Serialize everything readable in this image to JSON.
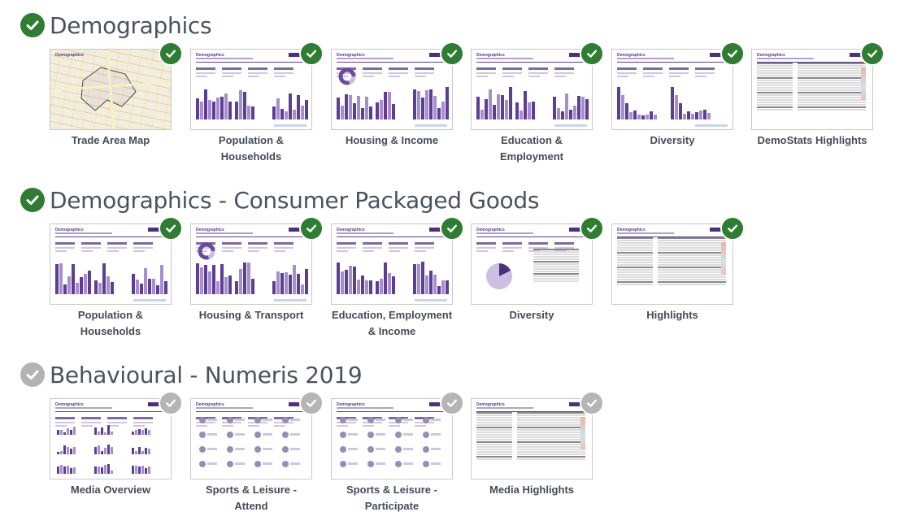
{
  "sections": [
    {
      "title": "Demographics",
      "checked": true,
      "cards": [
        {
          "label": "Trade Area Map",
          "checked": true,
          "thumb_type": "map"
        },
        {
          "label": "Population & Households",
          "checked": true,
          "thumb_type": "bars"
        },
        {
          "label": "Housing & Income",
          "checked": true,
          "thumb_type": "bars-donut"
        },
        {
          "label": "Education & Employment",
          "checked": true,
          "thumb_type": "bars"
        },
        {
          "label": "Diversity",
          "checked": true,
          "thumb_type": "bars-sparse"
        },
        {
          "label": "DemoStats Highlights",
          "checked": true,
          "thumb_type": "table"
        }
      ]
    },
    {
      "title": "Demographics - Consumer Packaged Goods",
      "checked": true,
      "cards": [
        {
          "label": "Population & Households",
          "checked": true,
          "thumb_type": "bars"
        },
        {
          "label": "Housing & Transport",
          "checked": true,
          "thumb_type": "bars-donut"
        },
        {
          "label": "Education, Employment & Income",
          "checked": true,
          "thumb_type": "bars"
        },
        {
          "label": "Diversity",
          "checked": true,
          "thumb_type": "pie"
        },
        {
          "label": "Highlights",
          "checked": true,
          "thumb_type": "table"
        }
      ]
    },
    {
      "title": "Behavioural - Numeris 2019",
      "checked": false,
      "cards": [
        {
          "label": "Media Overview",
          "checked": false,
          "thumb_type": "media"
        },
        {
          "label": "Sports & Leisure - Attend",
          "checked": false,
          "thumb_type": "icons"
        },
        {
          "label": "Sports & Leisure - Participate",
          "checked": false,
          "thumb_type": "icons"
        },
        {
          "label": "Media Highlights",
          "checked": false,
          "thumb_type": "table"
        }
      ]
    }
  ],
  "colors": {
    "checked": "#2e7d32",
    "unchecked": "#b3b3b3",
    "accent": "#5e3d95"
  }
}
